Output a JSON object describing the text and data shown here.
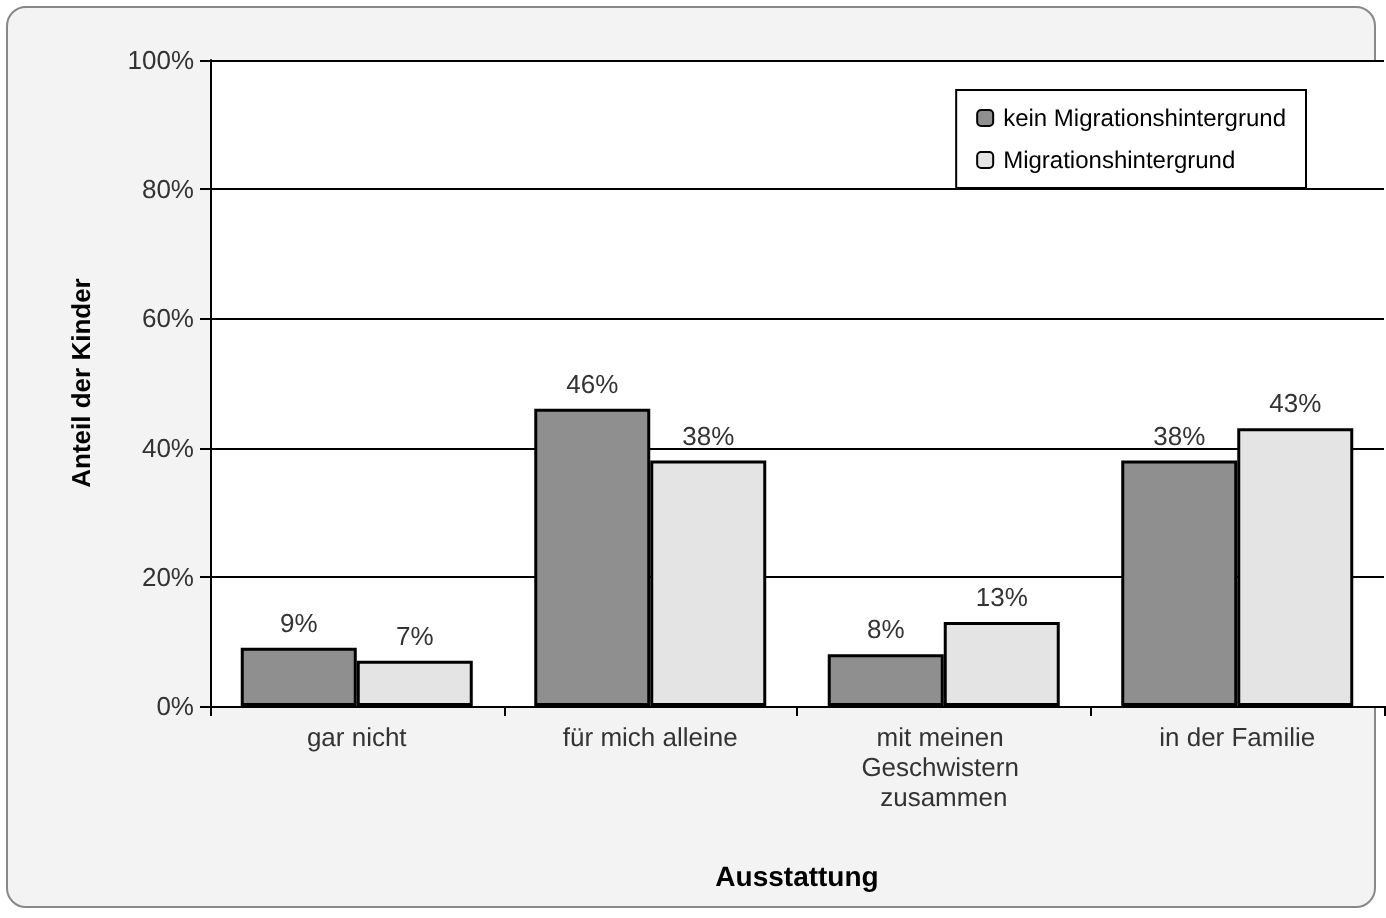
{
  "chart_data": {
    "type": "bar",
    "xlabel": "Ausstattung",
    "ylabel": "Anteil der Kinder",
    "categories": [
      "gar nicht",
      "für mich alleine",
      "mit meinen Geschwistern zusammen",
      "in der Familie"
    ],
    "series": [
      {
        "name": "kein Migrationshintergrund",
        "color": "#8f8f8f",
        "values": [
          9,
          46,
          8,
          38
        ],
        "value_labels": [
          "9%",
          "46%",
          "8%",
          "38%"
        ]
      },
      {
        "name": "Migrationshintergrund",
        "color": "#e4e4e4",
        "values": [
          7,
          38,
          13,
          43
        ],
        "value_labels": [
          "7%",
          "38%",
          "13%",
          "43%"
        ]
      }
    ],
    "ylim": [
      0,
      100
    ],
    "yticks": [
      {
        "value": 0,
        "label": "0%"
      },
      {
        "value": 20,
        "label": "20%"
      },
      {
        "value": 40,
        "label": "40%"
      },
      {
        "value": 60,
        "label": "60%"
      },
      {
        "value": 80,
        "label": "80%"
      },
      {
        "value": 100,
        "label": "100%"
      }
    ],
    "grid": "y",
    "legend": "top right"
  }
}
